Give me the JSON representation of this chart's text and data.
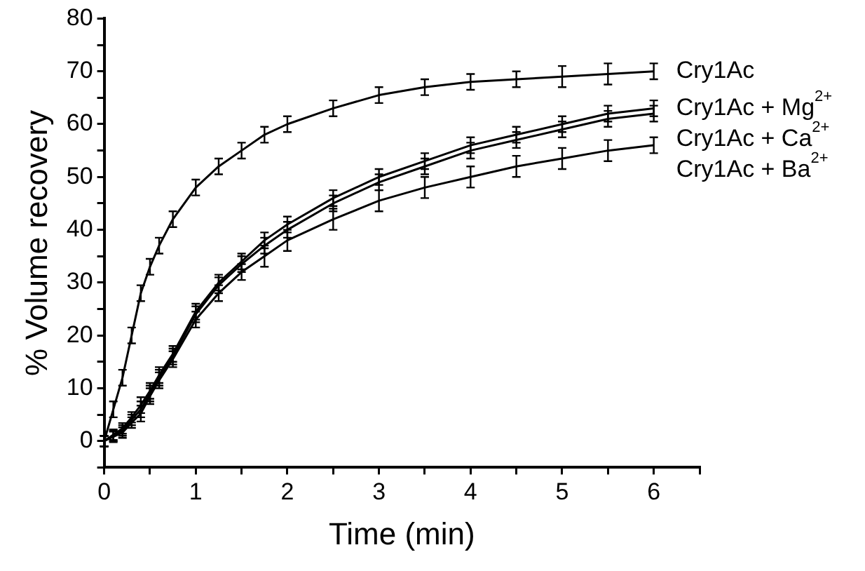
{
  "chart_data": {
    "type": "line",
    "xlabel": "Time (min)",
    "ylabel": "% Volume recovery",
    "x": [
      0,
      0.1,
      0.2,
      0.3,
      0.4,
      0.5,
      0.6,
      0.75,
      1,
      1.25,
      1.5,
      1.75,
      2,
      2.5,
      3,
      3.5,
      4,
      4.5,
      5,
      5.5,
      6
    ],
    "series": [
      {
        "name": "Cry1Ac",
        "color": "#000000",
        "values": [
          0,
          6,
          12,
          20,
          28,
          33,
          37,
          42,
          48,
          52,
          55,
          58,
          60,
          63,
          65.5,
          67,
          68,
          68.5,
          69,
          69.5,
          70
        ],
        "errors": [
          1,
          1.5,
          1.5,
          1.5,
          1.5,
          1.5,
          1.5,
          1.5,
          1.5,
          1.5,
          1.5,
          1.5,
          1.5,
          1.5,
          1.5,
          1.5,
          1.5,
          1.5,
          2,
          2,
          1.5
        ]
      },
      {
        "name": "Cry1Ac + Mg$^{2+}$",
        "color": "#000000",
        "values": [
          0,
          1.2,
          2.4,
          4.5,
          6.8,
          9.5,
          12.5,
          16.5,
          24.5,
          30,
          34,
          38,
          41,
          46,
          50,
          53,
          56,
          58,
          60,
          62,
          63
        ],
        "errors": [
          1,
          1,
          1,
          1,
          1.5,
          1.5,
          1.5,
          1.5,
          1.5,
          1.5,
          1.5,
          1.5,
          1.5,
          1.5,
          1.5,
          1.5,
          1.5,
          1.5,
          1.5,
          1.5,
          1.5
        ]
      },
      {
        "name": "Cry1Ac + Ca$^{2+}$",
        "color": "#000000",
        "values": [
          0,
          1,
          2,
          4,
          6,
          9,
          12,
          16,
          24,
          29.5,
          33.5,
          37,
          40,
          45,
          49,
          52,
          55,
          57,
          59,
          61,
          62
        ],
        "errors": [
          1,
          1,
          1,
          1,
          1.5,
          1.5,
          1.5,
          1.5,
          1.5,
          1.5,
          1.5,
          1.5,
          1.5,
          1.5,
          1.5,
          1.5,
          1.5,
          1.5,
          1.5,
          1.5,
          1.5
        ]
      },
      {
        "name": "Cry1Ac + Ba$^{2+}$",
        "color": "#000000",
        "values": [
          0,
          0.8,
          1.6,
          3.5,
          5.2,
          8.5,
          11.5,
          15.5,
          23,
          28,
          32,
          35,
          38,
          42,
          45.5,
          48,
          50,
          52,
          53.5,
          55,
          56
        ],
        "errors": [
          1,
          1,
          1,
          1,
          1.5,
          1.5,
          1.5,
          1.5,
          1.5,
          1.5,
          1.5,
          2,
          2,
          2,
          2,
          2,
          2,
          2,
          2,
          2,
          1.5
        ]
      }
    ],
    "xlim": [
      0,
      6.5
    ],
    "ylim": [
      -5,
      80
    ],
    "xticks": [
      0,
      {
        "value": 0.5,
        "label": null
      },
      1,
      {
        "value": 1.5,
        "label": null
      },
      2,
      {
        "value": 2.5,
        "label": null
      },
      3,
      {
        "value": 3.5,
        "label": null
      },
      4,
      {
        "value": 4.5,
        "label": null
      },
      5,
      {
        "value": 5.5,
        "label": null
      },
      6,
      {
        "value": 6.5,
        "label": null
      }
    ],
    "yticks": [
      {
        "value": -5,
        "label": null
      },
      0,
      {
        "value": 5,
        "label": null
      },
      10,
      {
        "value": 15,
        "label": null
      },
      20,
      {
        "value": 25,
        "label": null
      },
      30,
      {
        "value": 35,
        "label": null
      },
      40,
      {
        "value": 45,
        "label": null
      },
      50,
      {
        "value": 55,
        "label": null
      },
      60,
      {
        "value": 65,
        "label": null
      },
      70,
      {
        "value": 75,
        "label": null
      },
      80
    ],
    "grid": false,
    "legend": false,
    "marker": "none",
    "line_style": "solid"
  }
}
